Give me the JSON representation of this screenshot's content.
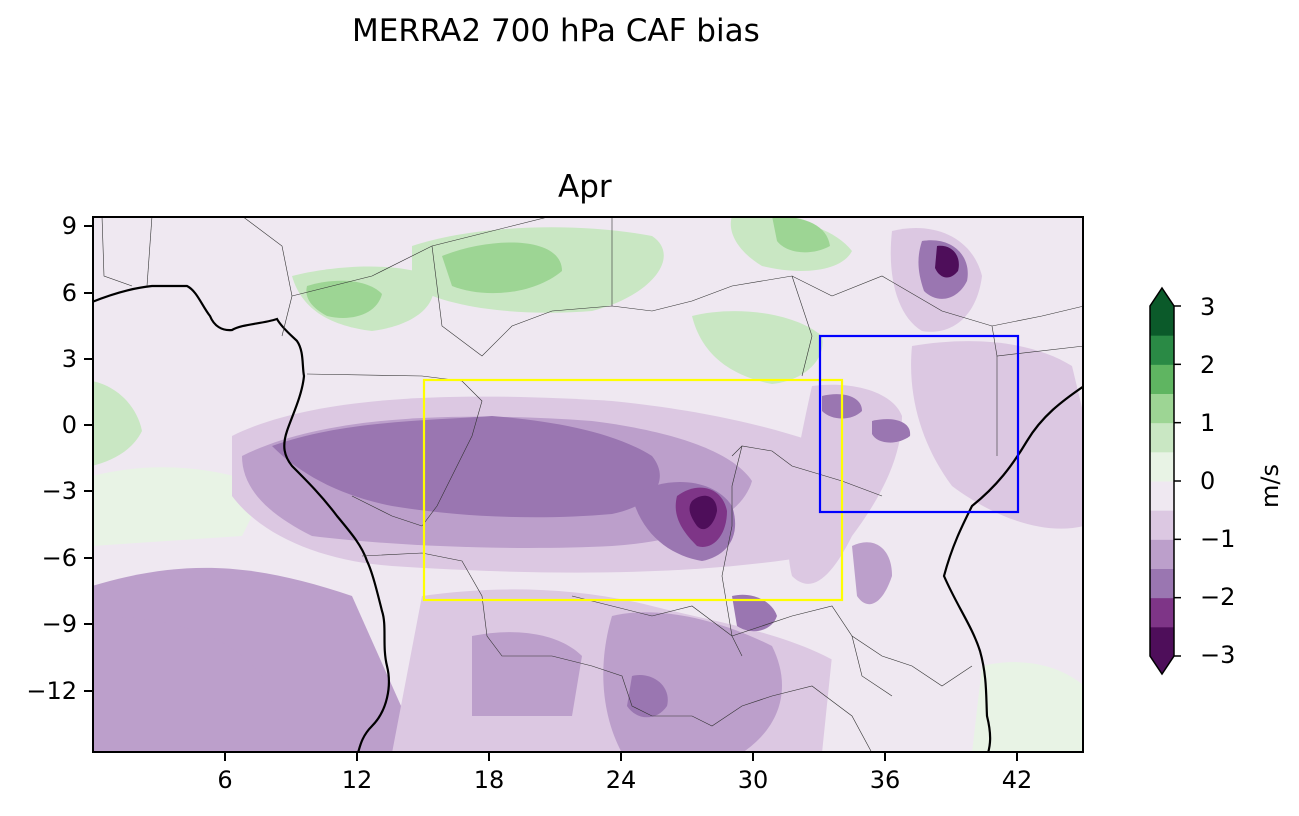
{
  "figure": {
    "suptitle": "MERRA2 700 hPa CAF bias",
    "panel_title": "Apr"
  },
  "axes": {
    "x_ticks": [
      "6",
      "12",
      "18",
      "24",
      "30",
      "36",
      "42"
    ],
    "y_ticks": [
      "9",
      "6",
      "3",
      "0",
      "−3",
      "−6",
      "−9",
      "−12"
    ],
    "x_range": [
      0,
      45
    ],
    "y_range": [
      -15,
      9.5
    ]
  },
  "colorbar": {
    "unit": "m/s",
    "tick_labels": [
      "3",
      "2",
      "1",
      "0",
      "−1",
      "−2",
      "−3"
    ],
    "levels": [
      -3,
      -2.5,
      -2,
      -1.5,
      -1,
      -0.5,
      0,
      0.5,
      1,
      1.5,
      2,
      2.5,
      3
    ],
    "colors": [
      "#4e0e5a",
      "#7e3587",
      "#9a76b1",
      "#bc9fcb",
      "#dcc8e2",
      "#efe8f1",
      "#e8f3e5",
      "#c9e7c3",
      "#9dd594",
      "#5fb561",
      "#2a8a45",
      "#0b5a2a"
    ],
    "extend": "both"
  },
  "regions": [
    {
      "name": "yellow-box",
      "color": "#ffff00",
      "lon": [
        15,
        34
      ],
      "lat": [
        -8,
        2
      ]
    },
    {
      "name": "blue-box",
      "color": "#0000ff",
      "lon": [
        33,
        42
      ],
      "lat": [
        -4,
        4
      ]
    }
  ],
  "palette": {
    "purple_light": "#efe8f1",
    "purple_mid": "#dcc8e2",
    "purple_med": "#bc9fcb",
    "purple_dark": "#9a76b1",
    "purple_deep": "#7e3587",
    "purple_darkest": "#4e0e5a",
    "green_light": "#e8f3e5",
    "green_mid": "#c9e7c3",
    "green_med": "#9dd594",
    "green_dark": "#5fb561"
  }
}
